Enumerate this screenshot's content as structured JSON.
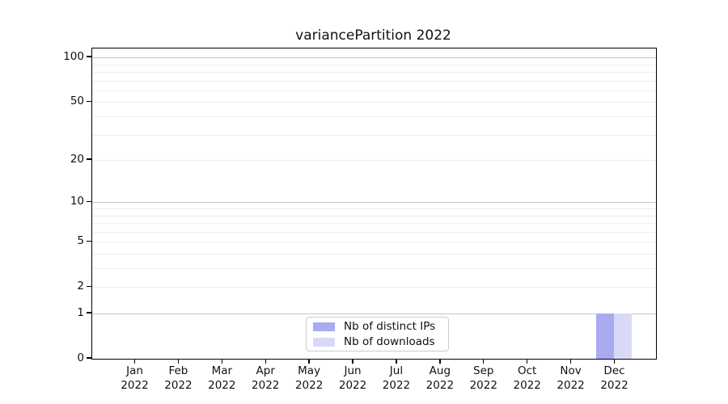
{
  "title": "variancePartition 2022",
  "chart_data": {
    "type": "bar",
    "title": "variancePartition 2022",
    "categories": [
      "Jan 2022",
      "Feb 2022",
      "Mar 2022",
      "Apr 2022",
      "May 2022",
      "Jun 2022",
      "Jul 2022",
      "Aug 2022",
      "Sep 2022",
      "Oct 2022",
      "Nov 2022",
      "Dec 2022"
    ],
    "series": [
      {
        "name": "Nb of distinct IPs",
        "color": "#aaaaf0",
        "values": [
          0,
          0,
          0,
          0,
          0,
          0,
          0,
          0,
          0,
          0,
          0,
          1
        ]
      },
      {
        "name": "Nb of downloads",
        "color": "#d9d9f7",
        "values": [
          0,
          0,
          0,
          0,
          0,
          0,
          0,
          0,
          0,
          0,
          0,
          1
        ]
      }
    ],
    "xlabel": "",
    "ylabel": "",
    "yscale": "log1p",
    "ylim": [
      0,
      115
    ],
    "ytick_values": [
      0,
      1,
      2,
      5,
      10,
      20,
      50,
      100
    ],
    "ytick_labels": [
      "0",
      "1",
      "2",
      "5",
      "10",
      "20",
      "50",
      "100"
    ],
    "major_grid_values": [
      1,
      10,
      100
    ],
    "minor_grid_values": [
      2,
      3,
      4,
      5,
      6,
      7,
      8,
      9,
      20,
      30,
      40,
      50,
      60,
      70,
      80,
      90
    ],
    "grid": true,
    "legend_position": "bottom-center"
  },
  "legend": {
    "items": [
      {
        "label": "Nb of distinct IPs",
        "color": "#aaaaf0"
      },
      {
        "label": "Nb of downloads",
        "color": "#d9d9f7"
      }
    ]
  },
  "colors": {
    "major_grid": "#c6c6c6",
    "minor_grid": "#ededed",
    "axis": "#000000",
    "background": "#ffffff"
  }
}
